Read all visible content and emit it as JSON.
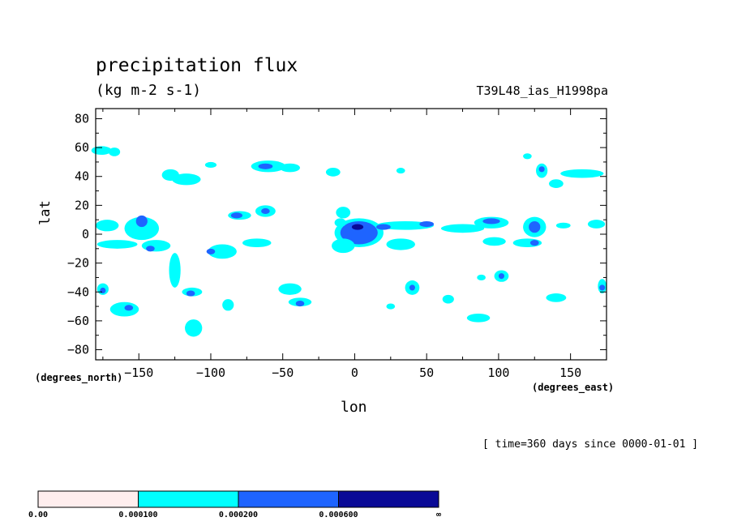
{
  "title": "precipitation flux",
  "units": "(kg m-2 s-1)",
  "run_label": "T39L48_ias_H1998pa",
  "time_note": "[ time=360 days since 0000-01-01 ]",
  "chart_data": {
    "type": "heatmap",
    "xlabel": "lon",
    "ylabel": "lat",
    "x_unit_note": "(degrees_east)",
    "y_unit_note": "(degrees_north)",
    "xlim": [
      -180,
      175
    ],
    "ylim": [
      -87,
      87
    ],
    "x_ticks": [
      -150,
      -100,
      -50,
      0,
      50,
      100,
      150
    ],
    "y_ticks": [
      80,
      60,
      40,
      20,
      0,
      -20,
      -40,
      -60,
      -80
    ],
    "x_tick_labels": [
      "−150",
      "−100",
      "−50",
      "0",
      "50",
      "100",
      "150"
    ],
    "y_tick_labels": [
      "80",
      "60",
      "40",
      "20",
      "0",
      "−20",
      "−40",
      "−60",
      "−80"
    ],
    "grid": false,
    "levels": [
      {
        "label": "0.00",
        "color": "#ffeeee"
      },
      {
        "label": "0.000100",
        "color": "#00ffff"
      },
      {
        "label": "0.000200",
        "color": "#1e64ff"
      },
      {
        "label": "0.000600",
        "color": "#0a0a96"
      },
      {
        "label": "∞"
      }
    ],
    "regions": [
      {
        "lon": -148,
        "lat": 4,
        "rlon": 12,
        "rlat": 8,
        "level": 1
      },
      {
        "lon": -148,
        "lat": 9,
        "rlon": 4,
        "rlat": 4,
        "level": 2
      },
      {
        "lon": -172,
        "lat": 6,
        "rlon": 8,
        "rlat": 4,
        "level": 1
      },
      {
        "lon": -165,
        "lat": -7,
        "rlon": 14,
        "rlat": 3,
        "level": 1
      },
      {
        "lon": -138,
        "lat": -8,
        "rlon": 10,
        "rlat": 4,
        "level": 1
      },
      {
        "lon": -142,
        "lat": -10,
        "rlon": 3,
        "rlat": 2,
        "level": 2
      },
      {
        "lon": -125,
        "lat": -25,
        "rlon": 4,
        "rlat": 12,
        "level": 1
      },
      {
        "lon": -113,
        "lat": -40,
        "rlon": 7,
        "rlat": 3,
        "level": 1
      },
      {
        "lon": -114,
        "lat": -41,
        "rlon": 3,
        "rlat": 2,
        "level": 2
      },
      {
        "lon": -92,
        "lat": -12,
        "rlon": 10,
        "rlat": 5,
        "level": 1
      },
      {
        "lon": -100,
        "lat": -12,
        "rlon": 3,
        "rlat": 2,
        "level": 2
      },
      {
        "lon": -80,
        "lat": 13,
        "rlon": 8,
        "rlat": 3,
        "level": 1
      },
      {
        "lon": -82,
        "lat": 13,
        "rlon": 4,
        "rlat": 2,
        "level": 2
      },
      {
        "lon": -62,
        "lat": 16,
        "rlon": 7,
        "rlat": 4,
        "level": 1
      },
      {
        "lon": -62,
        "lat": 16,
        "rlon": 3,
        "rlat": 2,
        "level": 2
      },
      {
        "lon": -68,
        "lat": -6,
        "rlon": 10,
        "rlat": 3,
        "level": 1
      },
      {
        "lon": -60,
        "lat": 47,
        "rlon": 12,
        "rlat": 4,
        "level": 1
      },
      {
        "lon": -62,
        "lat": 47,
        "rlon": 5,
        "rlat": 2,
        "level": 2
      },
      {
        "lon": -45,
        "lat": 46,
        "rlon": 7,
        "rlat": 3,
        "level": 1
      },
      {
        "lon": -45,
        "lat": -38,
        "rlon": 8,
        "rlat": 4,
        "level": 1
      },
      {
        "lon": -38,
        "lat": -47,
        "rlon": 8,
        "rlat": 3,
        "level": 1
      },
      {
        "lon": -38,
        "lat": -48,
        "rlon": 3,
        "rlat": 2,
        "level": 2
      },
      {
        "lon": -117,
        "lat": 38,
        "rlon": 10,
        "rlat": 4,
        "level": 1
      },
      {
        "lon": -128,
        "lat": 41,
        "rlon": 6,
        "rlat": 4,
        "level": 1
      },
      {
        "lon": -176,
        "lat": 58,
        "rlon": 7,
        "rlat": 3,
        "level": 1
      },
      {
        "lon": -167,
        "lat": 57,
        "rlon": 4,
        "rlat": 3,
        "level": 1
      },
      {
        "lon": -100,
        "lat": 48,
        "rlon": 4,
        "rlat": 2,
        "level": 1
      },
      {
        "lon": -160,
        "lat": -52,
        "rlon": 10,
        "rlat": 5,
        "level": 1
      },
      {
        "lon": -157,
        "lat": -51,
        "rlon": 3,
        "rlat": 2,
        "level": 2
      },
      {
        "lon": -112,
        "lat": -65,
        "rlon": 6,
        "rlat": 6,
        "level": 1
      },
      {
        "lon": -88,
        "lat": -49,
        "rlon": 4,
        "rlat": 4,
        "level": 1
      },
      {
        "lon": -175,
        "lat": -38,
        "rlon": 4,
        "rlat": 4,
        "level": 1
      },
      {
        "lon": -175,
        "lat": -39,
        "rlon": 2,
        "rlat": 2,
        "level": 2
      },
      {
        "lon": 3,
        "lat": 1,
        "rlon": 17,
        "rlat": 10,
        "level": 1
      },
      {
        "lon": 3,
        "lat": 1,
        "rlon": 13,
        "rlat": 8,
        "level": 2
      },
      {
        "lon": 2,
        "lat": 5,
        "rlon": 4,
        "rlat": 2,
        "level": 3
      },
      {
        "lon": -8,
        "lat": -8,
        "rlon": 8,
        "rlat": 5,
        "level": 1
      },
      {
        "lon": -8,
        "lat": 15,
        "rlon": 5,
        "rlat": 4,
        "level": 1
      },
      {
        "lon": -10,
        "lat": 8,
        "rlon": 4,
        "rlat": 3,
        "level": 1
      },
      {
        "lon": 35,
        "lat": 6,
        "rlon": 20,
        "rlat": 3,
        "level": 1
      },
      {
        "lon": 50,
        "lat": 7,
        "rlon": 5,
        "rlat": 2,
        "level": 2
      },
      {
        "lon": 32,
        "lat": -7,
        "rlon": 10,
        "rlat": 4,
        "level": 1
      },
      {
        "lon": 20,
        "lat": 5,
        "rlon": 5,
        "rlat": 2,
        "level": 2
      },
      {
        "lon": 75,
        "lat": 4,
        "rlon": 15,
        "rlat": 3,
        "level": 1
      },
      {
        "lon": 95,
        "lat": 8,
        "rlon": 12,
        "rlat": 4,
        "level": 1
      },
      {
        "lon": 95,
        "lat": 9,
        "rlon": 6,
        "rlat": 2,
        "level": 2
      },
      {
        "lon": 125,
        "lat": 5,
        "rlon": 8,
        "rlat": 7,
        "level": 1
      },
      {
        "lon": 125,
        "lat": 5,
        "rlon": 4,
        "rlat": 4,
        "level": 2
      },
      {
        "lon": 145,
        "lat": 6,
        "rlon": 5,
        "rlat": 2,
        "level": 1
      },
      {
        "lon": 168,
        "lat": 7,
        "rlon": 6,
        "rlat": 3,
        "level": 1
      },
      {
        "lon": 97,
        "lat": -5,
        "rlon": 8,
        "rlat": 3,
        "level": 1
      },
      {
        "lon": 120,
        "lat": -6,
        "rlon": 10,
        "rlat": 3,
        "level": 1
      },
      {
        "lon": 125,
        "lat": -6,
        "rlon": 3,
        "rlat": 2,
        "level": 2
      },
      {
        "lon": 102,
        "lat": -29,
        "rlon": 5,
        "rlat": 4,
        "level": 1
      },
      {
        "lon": 102,
        "lat": -29,
        "rlon": 2,
        "rlat": 2,
        "level": 2
      },
      {
        "lon": 40,
        "lat": -37,
        "rlon": 5,
        "rlat": 5,
        "level": 1
      },
      {
        "lon": 40,
        "lat": -37,
        "rlon": 2,
        "rlat": 2,
        "level": 2
      },
      {
        "lon": 140,
        "lat": -44,
        "rlon": 7,
        "rlat": 3,
        "level": 1
      },
      {
        "lon": 86,
        "lat": -58,
        "rlon": 8,
        "rlat": 3,
        "level": 1
      },
      {
        "lon": 65,
        "lat": -45,
        "rlon": 4,
        "rlat": 3,
        "level": 1
      },
      {
        "lon": 130,
        "lat": 44,
        "rlon": 4,
        "rlat": 5,
        "level": 1
      },
      {
        "lon": 130,
        "lat": 45,
        "rlon": 2,
        "rlat": 2,
        "level": 2
      },
      {
        "lon": 140,
        "lat": 35,
        "rlon": 5,
        "rlat": 3,
        "level": 1
      },
      {
        "lon": 158,
        "lat": 42,
        "rlon": 15,
        "rlat": 3,
        "level": 1
      },
      {
        "lon": 172,
        "lat": -36,
        "rlon": 3,
        "rlat": 5,
        "level": 1
      },
      {
        "lon": 172,
        "lat": -37,
        "rlon": 2,
        "rlat": 2,
        "level": 2
      },
      {
        "lon": -15,
        "lat": 43,
        "rlon": 5,
        "rlat": 3,
        "level": 1
      },
      {
        "lon": 32,
        "lat": 44,
        "rlon": 3,
        "rlat": 2,
        "level": 1
      },
      {
        "lon": 120,
        "lat": 54,
        "rlon": 3,
        "rlat": 2,
        "level": 1
      },
      {
        "lon": 88,
        "lat": -30,
        "rlon": 3,
        "rlat": 2,
        "level": 1
      },
      {
        "lon": 25,
        "lat": -50,
        "rlon": 3,
        "rlat": 2,
        "level": 1
      }
    ]
  }
}
